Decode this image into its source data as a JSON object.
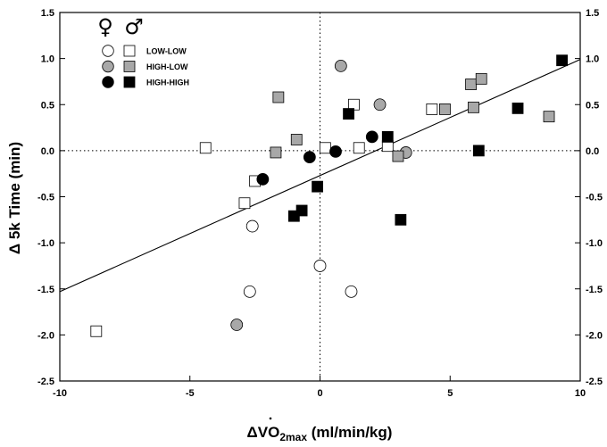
{
  "chart_data": {
    "type": "scatter",
    "title": "",
    "ylabel": "Δ 5k Time (min)",
    "xlabel": {
      "prefix": "Δ",
      "main": "VO",
      "sub": "2max",
      "suffix": " (ml/min/kg)"
    },
    "xlim": [
      -10,
      10
    ],
    "ylim": [
      -2.5,
      1.5
    ],
    "x_ticks": [
      -10,
      -5,
      0,
      5,
      10
    ],
    "y_ticks": [
      -2.5,
      -2.0,
      -1.5,
      -1.0,
      -0.5,
      0.0,
      0.5,
      1.0,
      1.5
    ],
    "x_tick_labels": [
      "-10",
      "-5",
      "0",
      "5",
      "10"
    ],
    "y_tick_labels": [
      "-2.5",
      "-2.0",
      "-1.5",
      "-1.0",
      "-0.5",
      "0.0",
      "0.5",
      "1.0",
      "1.5"
    ],
    "grid": false,
    "reference_lines": {
      "x": 0,
      "y": 0,
      "style": "dotted"
    },
    "regression_line": {
      "x": [
        -10,
        10
      ],
      "y": [
        -1.53,
        0.99
      ]
    },
    "legend": {
      "placement": "top-left",
      "header": {
        "female_symbol": "♀",
        "male_symbol": "♂"
      },
      "entries": [
        {
          "label": "LOW-LOW",
          "fill": "#ffffff"
        },
        {
          "label": "HIGH-LOW",
          "fill": "#a8a8a8"
        },
        {
          "label": "HIGH-HIGH",
          "fill": "#000000"
        }
      ]
    },
    "series": [
      {
        "group": "LOW-LOW",
        "sex": "female",
        "marker": "circle",
        "fill": "#ffffff",
        "points": [
          [
            -2.6,
            -0.82
          ],
          [
            -2.7,
            -1.53
          ],
          [
            0.0,
            -1.25
          ],
          [
            1.2,
            -1.53
          ]
        ]
      },
      {
        "group": "LOW-LOW",
        "sex": "male",
        "marker": "square",
        "fill": "#ffffff",
        "points": [
          [
            -8.6,
            -1.96
          ],
          [
            -4.4,
            0.03
          ],
          [
            -2.5,
            -0.33
          ],
          [
            -2.9,
            -0.57
          ],
          [
            0.2,
            0.03
          ],
          [
            1.3,
            0.5
          ],
          [
            1.5,
            0.03
          ],
          [
            2.6,
            0.05
          ],
          [
            4.3,
            0.45
          ]
        ]
      },
      {
        "group": "HIGH-LOW",
        "sex": "female",
        "marker": "circle",
        "fill": "#a8a8a8",
        "points": [
          [
            -3.2,
            -1.89
          ],
          [
            0.8,
            0.92
          ],
          [
            2.3,
            0.5
          ],
          [
            3.3,
            -0.02
          ]
        ]
      },
      {
        "group": "HIGH-LOW",
        "sex": "male",
        "marker": "square",
        "fill": "#a8a8a8",
        "points": [
          [
            -1.6,
            0.58
          ],
          [
            -1.7,
            -0.02
          ],
          [
            -0.9,
            0.12
          ],
          [
            3.0,
            -0.06
          ],
          [
            4.8,
            0.45
          ],
          [
            5.8,
            0.72
          ],
          [
            5.9,
            0.47
          ],
          [
            6.2,
            0.78
          ],
          [
            8.8,
            0.37
          ]
        ]
      },
      {
        "group": "HIGH-HIGH",
        "sex": "female",
        "marker": "circle",
        "fill": "#000000",
        "points": [
          [
            -2.2,
            -0.31
          ],
          [
            -0.4,
            -0.07
          ],
          [
            0.6,
            -0.01
          ],
          [
            2.0,
            0.15
          ]
        ]
      },
      {
        "group": "HIGH-HIGH",
        "sex": "male",
        "marker": "square",
        "fill": "#000000",
        "points": [
          [
            -1.0,
            -0.71
          ],
          [
            -0.7,
            -0.65
          ],
          [
            -0.1,
            -0.39
          ],
          [
            1.1,
            0.4
          ],
          [
            2.6,
            0.15
          ],
          [
            3.1,
            -0.75
          ],
          [
            6.1,
            0.0
          ],
          [
            7.6,
            0.46
          ],
          [
            9.3,
            0.98
          ]
        ]
      }
    ]
  }
}
